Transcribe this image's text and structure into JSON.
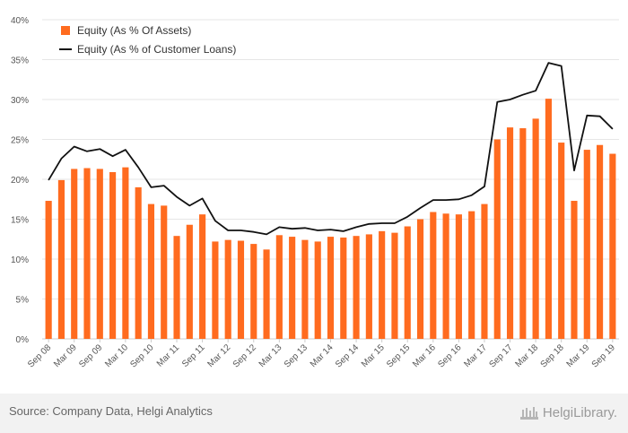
{
  "chart_data": {
    "type": "bar",
    "title": "",
    "xlabel": "",
    "ylabel": "",
    "ylim": [
      0,
      40
    ],
    "y_ticks": [
      "0%",
      "5%",
      "10%",
      "15%",
      "20%",
      "25%",
      "30%",
      "35%",
      "40%"
    ],
    "grid": true,
    "legend_position": "top-left",
    "categories": [
      "Sep 08",
      "Dec 08",
      "Mar 09",
      "Jun 09",
      "Sep 09",
      "Dec 09",
      "Mar 10",
      "Jun 10",
      "Sep 10",
      "Dec 10",
      "Mar 11",
      "Jun 11",
      "Sep 11",
      "Dec 11",
      "Mar 12",
      "Jun 12",
      "Sep 12",
      "Dec 12",
      "Mar 13",
      "Jun 13",
      "Sep 13",
      "Dec 13",
      "Mar 14",
      "Jun 14",
      "Sep 14",
      "Dec 14",
      "Mar 15",
      "Jun 15",
      "Sep 15",
      "Dec 15",
      "Mar 16",
      "Jun 16",
      "Sep 16",
      "Dec 16",
      "Mar 17",
      "Jun 17",
      "Sep 17",
      "Dec 17",
      "Mar 18",
      "Jun 18",
      "Sep 18",
      "Dec 18",
      "Mar 19",
      "Jun 19",
      "Sep 19"
    ],
    "x_tick_labels": [
      "Sep 08",
      "Mar 09",
      "Sep 09",
      "Mar 10",
      "Sep 10",
      "Mar 11",
      "Sep 11",
      "Mar 12",
      "Sep 12",
      "Mar 13",
      "Sep 13",
      "Mar 14",
      "Sep 14",
      "Mar 15",
      "Sep 15",
      "Mar 16",
      "Sep 16",
      "Mar 17",
      "Sep 17",
      "Mar 18",
      "Sep 18",
      "Mar 19",
      "Sep 19"
    ],
    "series": [
      {
        "name": "Equity (As % Of Assets)",
        "type": "bar",
        "color": "#ff6b1f",
        "values": [
          17.3,
          19.9,
          21.3,
          21.4,
          21.3,
          20.9,
          21.5,
          19.0,
          16.9,
          16.7,
          12.9,
          14.3,
          15.6,
          12.2,
          12.4,
          12.3,
          11.9,
          11.2,
          13.0,
          12.8,
          12.4,
          12.2,
          12.8,
          12.7,
          12.9,
          13.1,
          13.5,
          13.3,
          14.1,
          15.0,
          15.9,
          15.7,
          15.6,
          16.0,
          16.9,
          25.0,
          26.5,
          26.4,
          27.6,
          30.1,
          24.6,
          17.3,
          23.7,
          24.3,
          23.2
        ]
      },
      {
        "name": "Equity (As % of Customer Loans)",
        "type": "line",
        "color": "#111111",
        "values": [
          19.9,
          22.6,
          24.1,
          23.5,
          23.8,
          22.9,
          23.7,
          21.5,
          19.0,
          19.2,
          17.8,
          16.7,
          17.6,
          14.8,
          13.6,
          13.6,
          13.4,
          13.1,
          14.0,
          13.8,
          13.9,
          13.6,
          13.7,
          13.5,
          14.0,
          14.4,
          14.5,
          14.5,
          15.3,
          16.4,
          17.4,
          17.4,
          17.5,
          18.0,
          19.1,
          29.7,
          30.0,
          30.6,
          31.1,
          34.6,
          34.2,
          21.1,
          28.0,
          27.9,
          26.3
        ]
      }
    ]
  },
  "footer": {
    "source": "Source: Company Data, Helgi Analytics",
    "brand": "HelgiLibrary."
  }
}
